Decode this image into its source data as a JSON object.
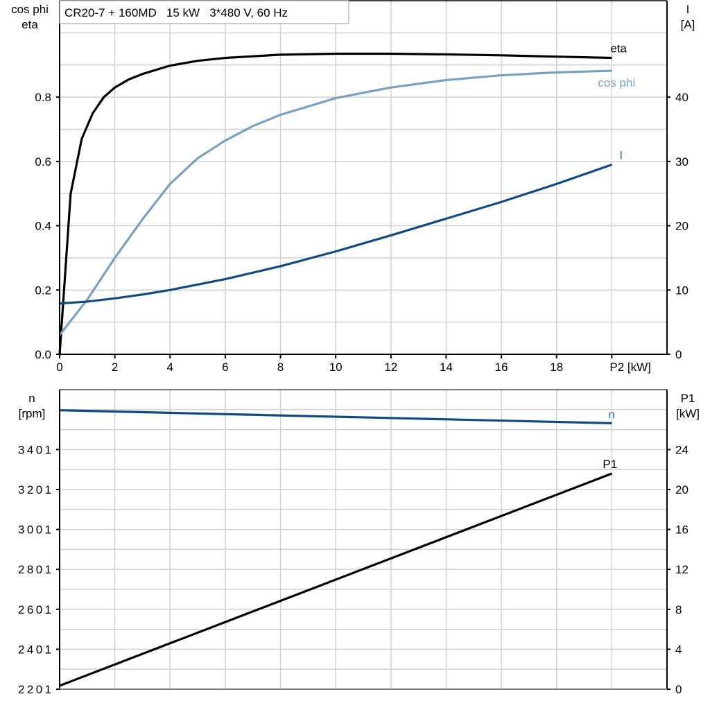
{
  "chart_data": [
    {
      "type": "line",
      "title": "CR20-7 + 160MD   15 kW   3*480 V, 60 Hz",
      "xlabel": "P2 [kW]",
      "ylabel_left": [
        "cos phi",
        "eta"
      ],
      "ylabel_right": [
        "I",
        "[A]"
      ],
      "xlim": [
        0,
        22
      ],
      "ylim_left": [
        0,
        1.1
      ],
      "ylim_right": [
        0,
        55
      ],
      "x_ticks": [
        "0",
        "2",
        "4",
        "6",
        "8",
        "10",
        "12",
        "14",
        "16",
        "18"
      ],
      "y_ticks_left": [
        "0.0",
        "0.2",
        "0.4",
        "0.6",
        "0.8"
      ],
      "y_ticks_right": [
        "0",
        "10",
        "20",
        "30",
        "40"
      ],
      "grid": true,
      "series": [
        {
          "name": "eta",
          "axis": "left",
          "color": "#000000",
          "x": [
            0,
            0.4,
            0.8,
            1.2,
            1.6,
            2,
            2.5,
            3,
            4,
            5,
            6,
            8,
            10,
            12,
            14,
            16,
            18,
            20
          ],
          "y": [
            0,
            0.5,
            0.67,
            0.75,
            0.8,
            0.83,
            0.855,
            0.872,
            0.898,
            0.913,
            0.922,
            0.932,
            0.935,
            0.935,
            0.933,
            0.93,
            0.926,
            0.922
          ]
        },
        {
          "name": "cos phi",
          "axis": "left",
          "color": "#7aa0c0",
          "x": [
            0,
            1,
            2,
            3,
            4,
            5,
            6,
            7,
            8,
            10,
            12,
            14,
            16,
            18,
            20
          ],
          "y": [
            0.06,
            0.17,
            0.3,
            0.42,
            0.53,
            0.61,
            0.665,
            0.71,
            0.745,
            0.797,
            0.83,
            0.853,
            0.868,
            0.877,
            0.882
          ]
        },
        {
          "name": "I",
          "axis": "right",
          "color": "#12497e",
          "x": [
            0,
            1,
            2,
            3,
            4,
            6,
            8,
            10,
            12,
            14,
            16,
            18,
            20
          ],
          "y": [
            7.9,
            8.2,
            8.7,
            9.3,
            10,
            11.7,
            13.7,
            16,
            18.5,
            21.1,
            23.7,
            26.5,
            29.5
          ]
        }
      ]
    },
    {
      "type": "line",
      "ylabel_left": [
        "n",
        "[rpm]"
      ],
      "ylabel_right": [
        "P1",
        "[kW]"
      ],
      "xlim": [
        0,
        22
      ],
      "ylim_left": [
        2201,
        3701
      ],
      "ylim_right": [
        0,
        30
      ],
      "y_ticks_left": [
        "2201",
        "2401",
        "2601",
        "2801",
        "3001",
        "3201",
        "3401"
      ],
      "y_ticks_right": [
        "0",
        "4",
        "8",
        "12",
        "16",
        "20",
        "24"
      ],
      "grid": true,
      "series": [
        {
          "name": "n",
          "axis": "left",
          "color": "#12497e",
          "x": [
            0,
            20
          ],
          "y": [
            3598,
            3533
          ]
        },
        {
          "name": "P1",
          "axis": "right",
          "color": "#000000",
          "x": [
            0,
            20
          ],
          "y": [
            0.35,
            21.6
          ]
        }
      ]
    }
  ]
}
